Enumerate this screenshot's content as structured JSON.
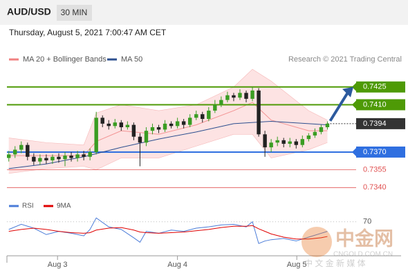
{
  "chart_data": {
    "type": "candlestick",
    "symbol": "AUD/USD",
    "timeframe": "30 MIN",
    "timestamp": "Thursday, August 5, 2021 7:00:47 AM CET",
    "copyright": "Research © 2021 Trading Central",
    "xlim": [
      -0.3,
      55.6
    ],
    "ylim": [
      0.7332,
      0.7443
    ],
    "xticks": [
      {
        "value": 7.8,
        "label": "Aug 3"
      },
      {
        "value": 27,
        "label": "Aug 4"
      },
      {
        "value": 46.1,
        "label": "Aug 5"
      }
    ],
    "up_color": "#3a9d23",
    "down_color": "#222222",
    "candles": {
      "open": [
        0.7365,
        0.7368,
        0.7372,
        0.7376,
        0.7366,
        0.7362,
        0.7365,
        0.7363,
        0.7366,
        0.7364,
        0.7367,
        0.7365,
        0.7368,
        0.7366,
        0.737,
        0.7399,
        0.7394,
        0.7392,
        0.7395,
        0.7391,
        0.7393,
        0.7383,
        0.7378,
        0.7388,
        0.7391,
        0.7389,
        0.7394,
        0.7392,
        0.7396,
        0.7393,
        0.7399,
        0.7402,
        0.7398,
        0.7405,
        0.741,
        0.7414,
        0.7418,
        0.7416,
        0.742,
        0.7415,
        0.7422,
        0.7385,
        0.7374,
        0.7378,
        0.738,
        0.7377,
        0.7379,
        0.7376,
        0.7381,
        0.7384,
        0.7387,
        0.7391
      ],
      "high": [
        0.7371,
        0.7375,
        0.7379,
        0.7378,
        0.7369,
        0.7368,
        0.7368,
        0.7368,
        0.7369,
        0.737,
        0.737,
        0.7371,
        0.7371,
        0.7373,
        0.7404,
        0.7401,
        0.7397,
        0.7398,
        0.7397,
        0.7396,
        0.7395,
        0.7386,
        0.7391,
        0.7394,
        0.7393,
        0.7397,
        0.7396,
        0.7399,
        0.7398,
        0.7402,
        0.7405,
        0.7404,
        0.7408,
        0.7414,
        0.7417,
        0.7421,
        0.742,
        0.7423,
        0.7422,
        0.7425,
        0.7424,
        0.7388,
        0.7381,
        0.7383,
        0.7382,
        0.7382,
        0.7381,
        0.7384,
        0.7386,
        0.739,
        0.7393,
        0.7396
      ],
      "low": [
        0.7362,
        0.7365,
        0.7369,
        0.7363,
        0.7359,
        0.7359,
        0.736,
        0.736,
        0.7361,
        0.7358,
        0.7362,
        0.7362,
        0.7363,
        0.7363,
        0.7368,
        0.7391,
        0.7389,
        0.739,
        0.7388,
        0.7389,
        0.738,
        0.7358,
        0.7375,
        0.7385,
        0.7386,
        0.7387,
        0.739,
        0.739,
        0.739,
        0.7391,
        0.7397,
        0.7395,
        0.7396,
        0.7403,
        0.7408,
        0.7412,
        0.7413,
        0.7414,
        0.7412,
        0.7413,
        0.7383,
        0.7366,
        0.737,
        0.7375,
        0.7374,
        0.7374,
        0.7373,
        0.7374,
        0.7379,
        0.7382,
        0.7385,
        0.7389
      ],
      "close": [
        0.7368,
        0.7372,
        0.7376,
        0.7366,
        0.7362,
        0.7365,
        0.7363,
        0.7366,
        0.7364,
        0.7367,
        0.7365,
        0.7368,
        0.7366,
        0.737,
        0.7399,
        0.7394,
        0.7392,
        0.7395,
        0.7391,
        0.7393,
        0.7383,
        0.7378,
        0.7388,
        0.7391,
        0.7389,
        0.7394,
        0.7392,
        0.7396,
        0.7393,
        0.7399,
        0.7402,
        0.7398,
        0.7405,
        0.741,
        0.7414,
        0.7418,
        0.7416,
        0.742,
        0.7415,
        0.7422,
        0.7385,
        0.7374,
        0.7378,
        0.738,
        0.7377,
        0.7379,
        0.7376,
        0.7381,
        0.7384,
        0.7387,
        0.7391,
        0.7394
      ]
    },
    "bands": {
      "name": "MA 20 + Bollinger Bands",
      "color": "#f08080",
      "fill": "#fde3e3",
      "x": [
        0,
        6,
        12,
        14,
        18,
        24,
        30,
        36,
        39,
        42,
        48,
        51
      ],
      "upper": [
        0.7382,
        0.7378,
        0.7376,
        0.7403,
        0.741,
        0.7405,
        0.741,
        0.7425,
        0.744,
        0.743,
        0.7405,
        0.7397
      ],
      "middle": [
        0.7367,
        0.7367,
        0.7367,
        0.7379,
        0.7388,
        0.7385,
        0.7393,
        0.7405,
        0.7412,
        0.7397,
        0.7388,
        0.7388
      ],
      "lower": [
        0.7352,
        0.7356,
        0.7358,
        0.7355,
        0.7365,
        0.7365,
        0.7375,
        0.7385,
        0.7385,
        0.7365,
        0.7372,
        0.7378
      ]
    },
    "ma50": {
      "name": "MA 50",
      "color": "#2c4f8f",
      "x": [
        0,
        6,
        12,
        18,
        24,
        30,
        36,
        42,
        48,
        51
      ],
      "values": [
        0.7356,
        0.736,
        0.7366,
        0.7374,
        0.7381,
        0.7387,
        0.7394,
        0.7396,
        0.7394,
        0.7393
      ]
    },
    "levels": [
      {
        "value": 0.7425,
        "label": "0.7425",
        "color": "#4e9a06",
        "style": "box"
      },
      {
        "value": 0.741,
        "label": "0.7410",
        "color": "#4e9a06",
        "style": "box"
      },
      {
        "value": 0.7394,
        "label": "0.7394",
        "color": "#333333",
        "style": "current"
      },
      {
        "value": 0.737,
        "label": "0.7370",
        "color": "#2f6fe0",
        "style": "box"
      },
      {
        "value": 0.7355,
        "label": "0.7355",
        "color": "#e05050",
        "style": "text"
      },
      {
        "value": 0.734,
        "label": "0.7340",
        "color": "#e05050",
        "style": "text"
      }
    ],
    "rsi": {
      "ylim": [
        19,
        87
      ],
      "yticks": [
        70
      ],
      "x": [
        0,
        2,
        4,
        6,
        8,
        10,
        12,
        13,
        14,
        16,
        18,
        20,
        21,
        22,
        24,
        26,
        28,
        30,
        32,
        34,
        36,
        38,
        39,
        40,
        41,
        42,
        44,
        46,
        48,
        50,
        51
      ],
      "series": [
        {
          "name": "RSI",
          "color": "#4a7bd8",
          "values": [
            58,
            66,
            60,
            50,
            55,
            52,
            48,
            58,
            76,
            62,
            58,
            45,
            38,
            55,
            52,
            57,
            55,
            60,
            62,
            65,
            66,
            62,
            70,
            36,
            40,
            42,
            44,
            40,
            46,
            52,
            55
          ]
        },
        {
          "name": "9MA",
          "color": "#e00000",
          "values": [
            55,
            58,
            60,
            58,
            55,
            53,
            52,
            53,
            57,
            60,
            61,
            57,
            54,
            53,
            52,
            53,
            54,
            56,
            58,
            61,
            63,
            63,
            64,
            59,
            55,
            51,
            46,
            43,
            43,
            45,
            47
          ]
        }
      ]
    },
    "watermark": {
      "brand": "中金网",
      "site": "CNGOLD.COM.CN",
      "slogan": "中 文 金 新 媒 体"
    }
  }
}
